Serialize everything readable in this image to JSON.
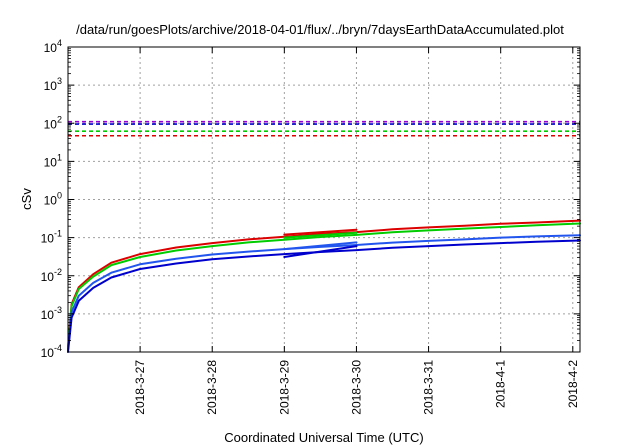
{
  "chart_data": {
    "type": "line",
    "title": "/data/run/goesPlots/archive/2018-04-01/flux/../bryn/7daysEarthDataAccumulated.plot",
    "xlabel": "Coordinated Universal Time (UTC)",
    "ylabel": "cSv",
    "y_scale": "log",
    "ylim": [
      0.0001,
      10000
    ],
    "xlim": [
      0,
      7.1
    ],
    "grid": true,
    "legend": "none",
    "y_ticks": [
      {
        "value": 0.0001,
        "base": "10",
        "exp": "-4"
      },
      {
        "value": 0.001,
        "base": "10",
        "exp": "-3"
      },
      {
        "value": 0.01,
        "base": "10",
        "exp": "-2"
      },
      {
        "value": 0.1,
        "base": "10",
        "exp": "-1"
      },
      {
        "value": 1,
        "base": "10",
        "exp": "0"
      },
      {
        "value": 10,
        "base": "10",
        "exp": "1"
      },
      {
        "value": 100,
        "base": "10",
        "exp": "2"
      },
      {
        "value": 1000,
        "base": "10",
        "exp": "3"
      },
      {
        "value": 10000,
        "base": "10",
        "exp": "4"
      }
    ],
    "x_ticks": [
      {
        "value": 1,
        "label": "2018-3-27"
      },
      {
        "value": 2,
        "label": "2018-3-28"
      },
      {
        "value": 3,
        "label": "2018-3-29"
      },
      {
        "value": 4,
        "label": "2018-3-30"
      },
      {
        "value": 5,
        "label": "2018-3-31"
      },
      {
        "value": 6,
        "label": "2018-4-1"
      },
      {
        "value": 7,
        "label": "2018-4-2"
      }
    ],
    "thresholds": [
      {
        "value": 110,
        "color": "#9400d3"
      },
      {
        "value": 95,
        "color": "#0000cc"
      },
      {
        "value": 62,
        "color": "#00cc00"
      },
      {
        "value": 47,
        "color": "#dd0000"
      }
    ],
    "series": [
      {
        "color": "#dd0000",
        "values": [
          [
            0.0,
            0.00013
          ],
          [
            0.05,
            0.0018
          ],
          [
            0.15,
            0.005
          ],
          [
            0.35,
            0.011
          ],
          [
            0.6,
            0.022
          ],
          [
            1.0,
            0.037
          ],
          [
            1.5,
            0.055
          ],
          [
            2.0,
            0.072
          ],
          [
            2.5,
            0.09
          ],
          [
            3.0,
            0.105
          ],
          [
            3.5,
            0.125
          ],
          [
            4.0,
            0.14
          ],
          [
            4.5,
            0.165
          ],
          [
            5.0,
            0.185
          ],
          [
            5.5,
            0.205
          ],
          [
            6.0,
            0.23
          ],
          [
            6.5,
            0.25
          ],
          [
            7.1,
            0.28
          ]
        ]
      },
      {
        "color": "#00cc00",
        "values": [
          [
            0.0,
            0.00012
          ],
          [
            0.05,
            0.0016
          ],
          [
            0.15,
            0.0045
          ],
          [
            0.35,
            0.0095
          ],
          [
            0.6,
            0.019
          ],
          [
            1.0,
            0.031
          ],
          [
            1.5,
            0.046
          ],
          [
            2.0,
            0.06
          ],
          [
            2.5,
            0.075
          ],
          [
            3.0,
            0.088
          ],
          [
            3.5,
            0.104
          ],
          [
            4.0,
            0.118
          ],
          [
            4.5,
            0.138
          ],
          [
            5.0,
            0.155
          ],
          [
            5.5,
            0.172
          ],
          [
            6.0,
            0.19
          ],
          [
            6.5,
            0.21
          ],
          [
            7.1,
            0.235
          ]
        ]
      },
      {
        "color": "#2255ee",
        "values": [
          [
            0.0,
            0.00011
          ],
          [
            0.05,
            0.0011
          ],
          [
            0.15,
            0.003
          ],
          [
            0.35,
            0.0065
          ],
          [
            0.6,
            0.012
          ],
          [
            1.0,
            0.02
          ],
          [
            1.5,
            0.028
          ],
          [
            2.0,
            0.036
          ],
          [
            2.5,
            0.043
          ],
          [
            3.0,
            0.05
          ],
          [
            3.5,
            0.057
          ],
          [
            4.0,
            0.064
          ],
          [
            4.5,
            0.074
          ],
          [
            5.0,
            0.082
          ],
          [
            5.5,
            0.09
          ],
          [
            6.0,
            0.1
          ],
          [
            6.5,
            0.108
          ],
          [
            7.1,
            0.115
          ]
        ]
      },
      {
        "color": "#0000cc",
        "values": [
          [
            0.0,
            0.0001
          ],
          [
            0.05,
            0.0008
          ],
          [
            0.15,
            0.0022
          ],
          [
            0.35,
            0.0048
          ],
          [
            0.6,
            0.009
          ],
          [
            1.0,
            0.015
          ],
          [
            1.5,
            0.021
          ],
          [
            2.0,
            0.027
          ],
          [
            2.5,
            0.032
          ],
          [
            3.0,
            0.037
          ],
          [
            3.5,
            0.042
          ],
          [
            4.0,
            0.047
          ],
          [
            4.5,
            0.054
          ],
          [
            5.0,
            0.06
          ],
          [
            5.5,
            0.066
          ],
          [
            6.0,
            0.072
          ],
          [
            6.5,
            0.078
          ],
          [
            7.1,
            0.084
          ]
        ]
      },
      {
        "color": "#dd0000",
        "values": [
          [
            3.0,
            0.12
          ],
          [
            4.0,
            0.16
          ]
        ]
      },
      {
        "color": "#00cc00",
        "values": [
          [
            3.0,
            0.1
          ],
          [
            4.0,
            0.135
          ]
        ]
      },
      {
        "color": "#2255ee",
        "values": [
          [
            3.0,
            0.05
          ],
          [
            4.0,
            0.075
          ]
        ]
      },
      {
        "color": "#0000cc",
        "values": [
          [
            3.0,
            0.031
          ],
          [
            4.0,
            0.06
          ]
        ]
      }
    ]
  }
}
